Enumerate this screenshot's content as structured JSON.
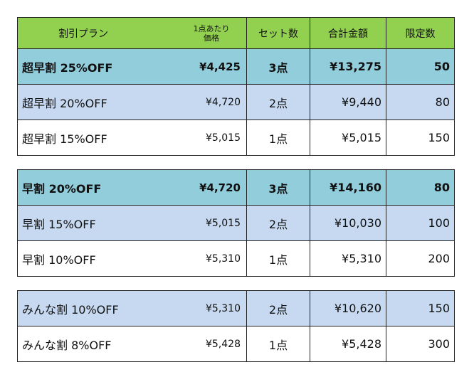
{
  "header": {
    "plan": "割引プラン",
    "unit_price_line1": "1点あたり",
    "unit_price_line2": "価格",
    "set_count": "セット数",
    "total": "合計金額",
    "limit": "限定数"
  },
  "groups": [
    {
      "rows": [
        {
          "plan": "超早割 25%OFF",
          "unit_price": "¥4,425",
          "set": "3点",
          "total": "¥13,275",
          "limit": "50"
        },
        {
          "plan": "超早割 20%OFF",
          "unit_price": "¥4,720",
          "set": "2点",
          "total": "¥9,440",
          "limit": "80"
        },
        {
          "plan": "超早割 15%OFF",
          "unit_price": "¥5,015",
          "set": "1点",
          "total": "¥5,015",
          "limit": "150"
        }
      ]
    },
    {
      "rows": [
        {
          "plan": "早割 20%OFF",
          "unit_price": "¥4,720",
          "set": "3点",
          "total": "¥14,160",
          "limit": "80"
        },
        {
          "plan": "早割 15%OFF",
          "unit_price": "¥5,015",
          "set": "2点",
          "total": "¥10,030",
          "limit": "100"
        },
        {
          "plan": "早割 10%OFF",
          "unit_price": "¥5,310",
          "set": "1点",
          "total": "¥5,310",
          "limit": "200"
        }
      ]
    },
    {
      "rows": [
        {
          "plan": "みんな割 10%OFF",
          "unit_price": "¥5,310",
          "set": "2点",
          "total": "¥10,620",
          "limit": "150"
        },
        {
          "plan": "みんな割 8%OFF",
          "unit_price": "¥5,428",
          "set": "1点",
          "total": "¥5,428",
          "limit": "300"
        }
      ]
    }
  ]
}
